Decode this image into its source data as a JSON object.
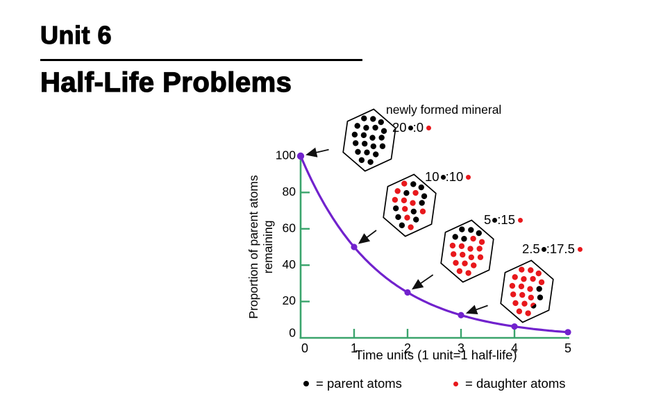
{
  "slide": {
    "kicker": "Unit 6",
    "title": "Half-Life Problems"
  },
  "chart_data": {
    "type": "line",
    "x": [
      0,
      1,
      2,
      3,
      4,
      5
    ],
    "y": [
      100,
      50,
      25,
      12.5,
      6.25,
      3.125
    ],
    "series_name": "Proportion of parent atoms remaining",
    "xlabel": "Time units (1 unit=1 half-life)",
    "ylabel_line1": "Proportion of parent atoms",
    "ylabel_line2": "remaining",
    "xlim": [
      0,
      5
    ],
    "ylim": [
      0,
      100
    ],
    "xticks": [
      "0",
      "1",
      "2",
      "3",
      "4",
      "5"
    ],
    "yticks": [
      "0",
      "20",
      "40",
      "60",
      "80",
      "100"
    ],
    "grid": false,
    "legend_position": "bottom",
    "axis_color": "#3aa46c",
    "curve_color": "#7122cd",
    "point_color": "#7122cd"
  },
  "minerals": [
    {
      "caption": "newly formed mineral",
      "parent": "20",
      "daughter": "0",
      "pattern": "pppppppppppppppppppp",
      "points_to_x": 0
    },
    {
      "parent": "10",
      "daughter": "10",
      "pattern": "dppdpdpdddppdpdpdppd",
      "points_to_x": 1
    },
    {
      "parent": "5",
      "daughter": "15",
      "pattern": "pppppddddddddddddddd",
      "points_to_x": 2
    },
    {
      "parent": "2.5",
      "daughter": "17.5",
      "pattern": "ddddddddddpdddpddhdd",
      "points_to_x": 3
    }
  ],
  "legend": {
    "items": [
      {
        "symbol": "parent-dot",
        "color": "#000000",
        "label": "= parent atoms"
      },
      {
        "symbol": "daughter-dot",
        "color": "#e8181c",
        "label": "= daughter atoms"
      }
    ]
  },
  "colors": {
    "parent_dot": "#000000",
    "daughter_dot": "#e8181c",
    "arrow": "#111111",
    "text": "#000000"
  }
}
